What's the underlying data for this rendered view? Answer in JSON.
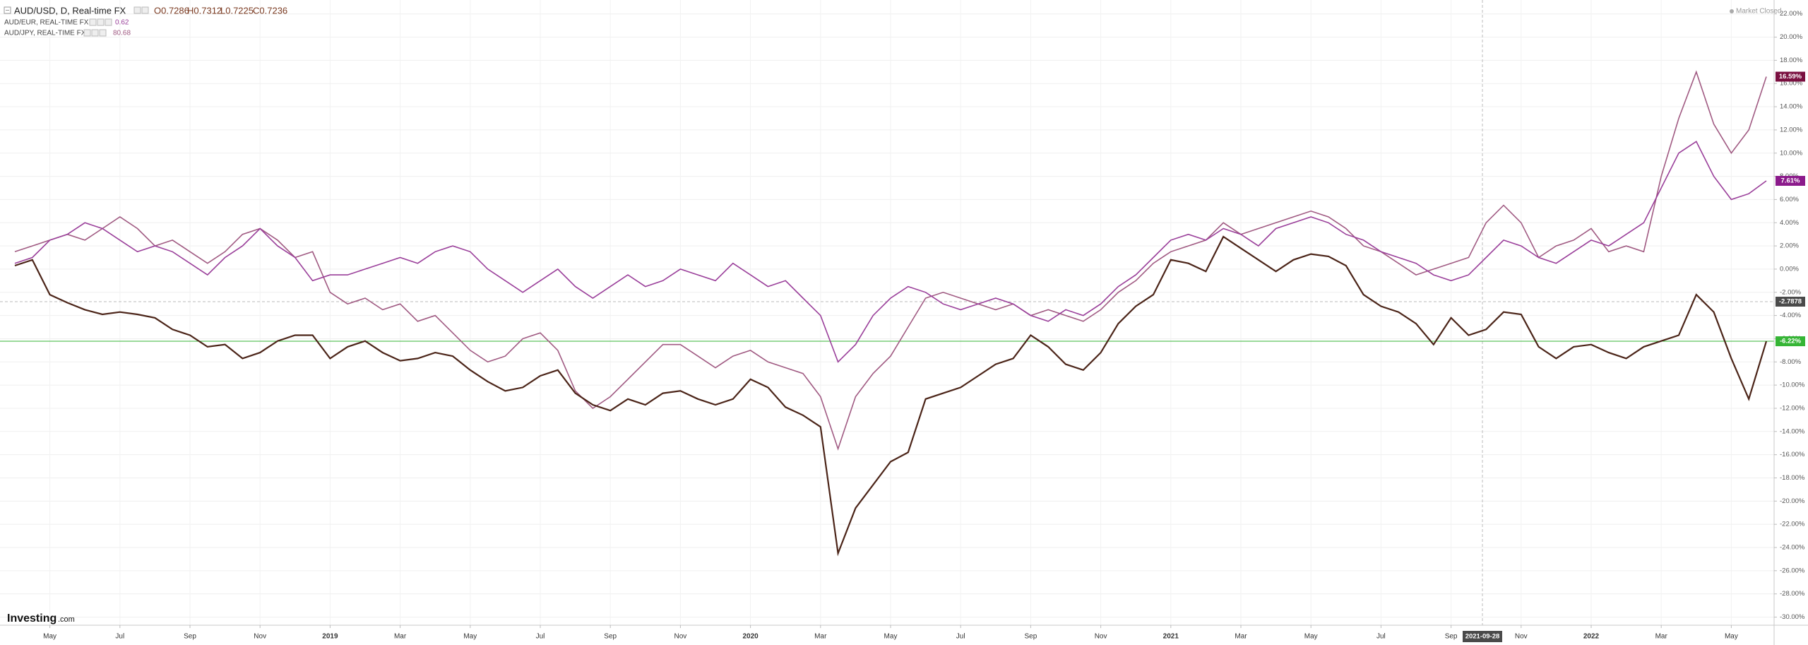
{
  "chart_data": {
    "type": "line",
    "title": "AUD/USD, D, Real-time FX",
    "ohlc": [
      "O0.7286",
      "H0.7312",
      "L0.7225",
      "C0.7236"
    ],
    "categories": [
      null,
      null,
      "May",
      null,
      null,
      null,
      "Jul",
      null,
      null,
      null,
      "Sep",
      null,
      null,
      null,
      "Nov",
      null,
      null,
      null,
      "2019",
      null,
      null,
      null,
      "Mar",
      null,
      null,
      null,
      "May",
      null,
      null,
      null,
      "Jul",
      null,
      null,
      null,
      "Sep",
      null,
      null,
      null,
      "Nov",
      null,
      null,
      null,
      "2020",
      null,
      null,
      null,
      "Mar",
      null,
      null,
      null,
      "May",
      null,
      null,
      null,
      "Jul",
      null,
      null,
      null,
      "Sep",
      null,
      null,
      null,
      "Nov",
      null,
      null,
      null,
      "2021",
      null,
      null,
      null,
      "Mar",
      null,
      null,
      null,
      "May",
      null,
      null,
      null,
      "Jul",
      null,
      null,
      null,
      "Sep",
      null,
      null,
      null,
      "Nov",
      null,
      null,
      null,
      "2022",
      null,
      null,
      null,
      "Mar",
      null,
      null,
      null,
      "May",
      null,
      null
    ],
    "series": [
      {
        "name": "AUD/USD, D, Real-time FX",
        "color": "#4b2418",
        "current": {
          "value": -6.22,
          "label": "-6.22%"
        },
        "current_color": "#35b535",
        "values": [
          0.3,
          0.8,
          -2.2,
          -2.9,
          -3.5,
          -3.9,
          -3.7,
          -3.9,
          -4.2,
          -5.2,
          -5.7,
          -6.7,
          -6.5,
          -7.7,
          -7.2,
          -6.2,
          -5.7,
          -5.7,
          -7.7,
          -6.7,
          -6.2,
          -7.2,
          -7.9,
          -7.7,
          -7.2,
          -7.5,
          -8.7,
          -9.7,
          -10.5,
          -10.2,
          -9.2,
          -8.7,
          -10.7,
          -11.7,
          -12.2,
          -11.2,
          -11.7,
          -10.7,
          -10.5,
          -11.2,
          -11.7,
          -11.2,
          -9.5,
          -10.2,
          -11.9,
          -12.6,
          -13.6,
          -24.5,
          -20.6,
          -18.6,
          -16.6,
          -15.8,
          -11.2,
          -10.7,
          -10.2,
          -9.2,
          -8.2,
          -7.7,
          -5.7,
          -6.7,
          -8.2,
          -8.7,
          -7.2,
          -4.7,
          -3.2,
          -2.2,
          0.8,
          0.5,
          -0.2,
          2.8,
          1.8,
          0.8,
          -0.2,
          0.8,
          1.3,
          1.1,
          0.3,
          -2.2,
          -3.2,
          -3.7,
          -4.7,
          -6.5,
          -4.2,
          -5.7,
          -5.2,
          -3.7,
          -3.9,
          -6.7,
          -7.7,
          -6.7,
          -6.5,
          -7.2,
          -7.7,
          -6.7,
          -6.2,
          -5.7,
          -2.2,
          -3.7,
          -7.7,
          -11.2,
          -6.22
        ]
      },
      {
        "name": "AUD/EUR, REAL-TIME FX",
        "color": "#9a3f9a",
        "last": "0.62",
        "current": {
          "value": 7.61,
          "label": "7.61%"
        },
        "current_color": "#8b1a8b",
        "values": [
          0.5,
          1.0,
          2.5,
          3.0,
          4.0,
          3.5,
          2.5,
          1.5,
          2.0,
          1.5,
          0.5,
          -0.5,
          1.0,
          2.0,
          3.5,
          2.0,
          1.0,
          -1.0,
          -0.5,
          -0.5,
          0.0,
          0.5,
          1.0,
          0.5,
          1.5,
          2.0,
          1.5,
          0.0,
          -1.0,
          -2.0,
          -1.0,
          0.0,
          -1.5,
          -2.5,
          -1.5,
          -0.5,
          -1.5,
          -1.0,
          0.0,
          -0.5,
          -1.0,
          0.5,
          -0.5,
          -1.5,
          -1.0,
          -2.5,
          -4.0,
          -8.0,
          -6.5,
          -4.0,
          -2.5,
          -1.5,
          -2.0,
          -3.0,
          -3.5,
          -3.0,
          -2.5,
          -3.0,
          -4.0,
          -4.5,
          -3.5,
          -4.0,
          -3.0,
          -1.5,
          -0.5,
          1.0,
          2.5,
          3.0,
          2.5,
          3.5,
          3.0,
          2.0,
          3.5,
          4.0,
          4.5,
          4.0,
          3.0,
          2.5,
          1.5,
          1.0,
          0.5,
          -0.5,
          -1.0,
          -0.5,
          1.0,
          2.5,
          2.0,
          1.0,
          0.5,
          1.5,
          2.5,
          2.0,
          3.0,
          4.0,
          7.0,
          10.0,
          11.0,
          8.0,
          6.0,
          6.5,
          7.61
        ]
      },
      {
        "name": "AUD/JPY, REAL-TIME FX",
        "color": "#a05a82",
        "last": "80.68",
        "current": {
          "value": 16.59,
          "label": "16.59%"
        },
        "current_color": "#7a1040",
        "values": [
          1.5,
          2,
          2.5,
          3,
          2.5,
          3.5,
          4.5,
          3.5,
          2,
          2.5,
          1.5,
          0.5,
          1.5,
          3,
          3.5,
          2.5,
          1,
          1.5,
          -2.0,
          -3.0,
          -2.5,
          -3.5,
          -3.0,
          -4.5,
          -4.0,
          -5.5,
          -7.0,
          -8.0,
          -7.5,
          -6.0,
          -5.5,
          -7.0,
          -10.5,
          -12.0,
          -11.0,
          -9.5,
          -8.0,
          -6.5,
          -6.5,
          -7.5,
          -8.5,
          -7.5,
          -7.0,
          -8.0,
          -8.5,
          -9.0,
          -11.0,
          -15.5,
          -11.0,
          -9.0,
          -7.5,
          -5.0,
          -2.5,
          -2.0,
          -2.5,
          -3.0,
          -3.5,
          -3.0,
          -4.0,
          -3.5,
          -4.0,
          -4.5,
          -3.5,
          -2.0,
          -1.0,
          0.5,
          1.5,
          2.0,
          2.5,
          4.0,
          3.0,
          3.5,
          4.0,
          4.5,
          5.0,
          4.5,
          3.5,
          2.0,
          1.5,
          0.5,
          -0.5,
          0.0,
          0.5,
          1.0,
          4.0,
          5.5,
          4.0,
          1.0,
          2.0,
          2.5,
          3.5,
          1.5,
          2.0,
          1.5,
          8.0,
          13.0,
          17.0,
          12.5,
          10.0,
          12.0,
          16.59
        ]
      }
    ],
    "ylim": [
      -30.7,
      23.2
    ],
    "yticks": [
      {
        "value": 22,
        "label": "22.00%"
      },
      {
        "value": 20,
        "label": "20.00%"
      },
      {
        "value": 18,
        "label": "18.00%"
      },
      {
        "value": 16,
        "label": "16.00%"
      },
      {
        "value": 14,
        "label": "14.00%"
      },
      {
        "value": 12,
        "label": "12.00%"
      },
      {
        "value": 10,
        "label": "10.00%"
      },
      {
        "value": 8,
        "label": "8.00%"
      },
      {
        "value": 6,
        "label": "6.00%"
      },
      {
        "value": 4,
        "label": "4.00%"
      },
      {
        "value": 2,
        "label": "2.00%"
      },
      {
        "value": 0,
        "label": "0.00%"
      },
      {
        "value": -2,
        "label": "-2.00%"
      },
      {
        "value": -4,
        "label": "-4.00%"
      },
      {
        "value": -6,
        "label": "-6.00%"
      },
      {
        "value": -8,
        "label": "-8.00%"
      },
      {
        "value": -10,
        "label": "-10.00%"
      },
      {
        "value": -12,
        "label": "-12.00%"
      },
      {
        "value": -14,
        "label": "-14.00%"
      },
      {
        "value": -16,
        "label": "-16.00%"
      },
      {
        "value": -18,
        "label": "-18.00%"
      },
      {
        "value": -20,
        "label": "-20.00%"
      },
      {
        "value": -22,
        "label": "-22.00%"
      },
      {
        "value": -24,
        "label": "-24.00%"
      },
      {
        "value": -26,
        "label": "-26.00%"
      },
      {
        "value": -28,
        "label": "-28.00%"
      },
      {
        "value": -30,
        "label": "-30.00%"
      }
    ],
    "grid": true,
    "cursor": {
      "x_label": "2021-09-28",
      "y_label": "-2.7878"
    }
  },
  "market_status": "Market Closed",
  "logo": {
    "name": "Investing",
    "suffix": ".com"
  }
}
